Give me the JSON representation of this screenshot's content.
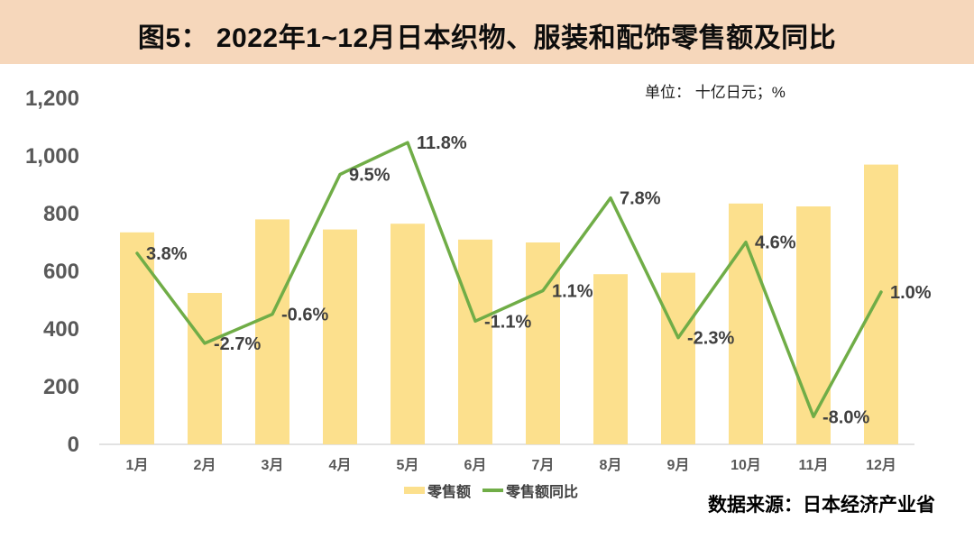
{
  "title": "图5： 2022年1~12月日本织物、服装和配饰零售额及同比",
  "unit_label": "单位： 十亿日元；%",
  "source": "数据来源：日本经济产业省",
  "legend": {
    "bar_label": "零售额",
    "line_label": "零售额同比"
  },
  "colors": {
    "title_band": "#f6d7bb",
    "bar": "#fce08d",
    "line": "#70ad47",
    "axis_label": "#595959",
    "data_label": "#404040",
    "axis_line": "#d9d9d9"
  },
  "chart_data": {
    "type": "bar+line",
    "categories": [
      "1月",
      "2月",
      "3月",
      "4月",
      "5月",
      "6月",
      "7月",
      "8月",
      "9月",
      "10月",
      "11月",
      "12月"
    ],
    "series": [
      {
        "name": "零售额",
        "type": "bar",
        "values": [
          735,
          525,
          780,
          745,
          765,
          710,
          700,
          590,
          595,
          835,
          825,
          970
        ]
      },
      {
        "name": "零售额同比",
        "type": "line",
        "values": [
          3.8,
          -2.7,
          -0.6,
          9.5,
          11.8,
          -1.1,
          1.1,
          7.8,
          -2.3,
          4.6,
          -8.0,
          1.0
        ],
        "labels": [
          "3.8%",
          "-2.7%",
          "-0.6%",
          "9.5%",
          "11.8%",
          "-1.1%",
          "1.1%",
          "7.8%",
          "-2.3%",
          "4.6%",
          "-8.0%",
          "1.0%"
        ]
      }
    ],
    "y_left": {
      "min": 0,
      "max": 1200,
      "step": 200,
      "tick_labels": [
        "0",
        "200",
        "400",
        "600",
        "800",
        "1,000",
        "1,200"
      ]
    },
    "y_right": {
      "min": -10,
      "max": 15
    },
    "grid": false,
    "legend_position": "bottom"
  }
}
